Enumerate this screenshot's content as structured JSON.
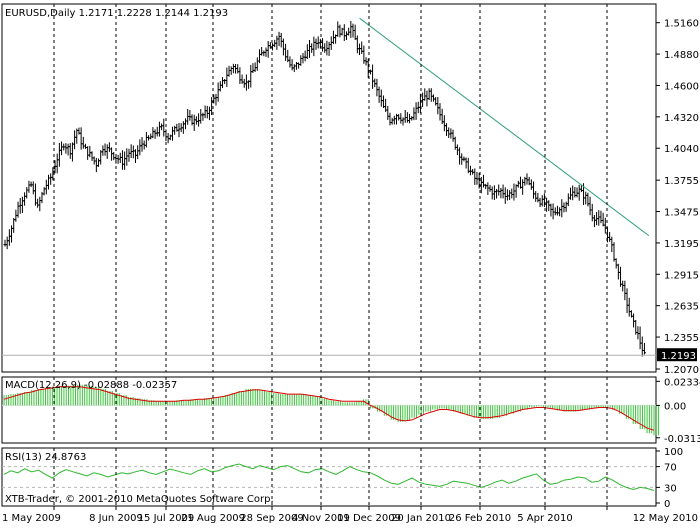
{
  "chart_data": [
    {
      "type": "ohlc",
      "title": "EURUSD,Daily",
      "ohlc_header": "1.2171 1.2228 1.2144 1.2193",
      "current_price": "1.2193",
      "y_ticks": [
        "1.5160",
        "1.4880",
        "1.4600",
        "1.4320",
        "1.4040",
        "1.3755",
        "1.3475",
        "1.3195",
        "1.2915",
        "1.2635",
        "1.2355",
        "1.2070"
      ],
      "ylim": [
        1.207,
        1.53
      ],
      "x_labels": [
        "1 May 2009",
        "8 Jun 2009",
        "15 Jul 2009",
        "21 Aug 2009",
        "28 Sep 2009",
        "4 Nov 2009",
        "11 Dec 2009",
        "20 Jan 2010",
        "26 Feb 2010",
        "5 Apr 2010",
        "12 May 2010"
      ],
      "close_path": [
        [
          0,
          1.318
        ],
        [
          3,
          1.333
        ],
        [
          6,
          1.352
        ],
        [
          9,
          1.363
        ],
        [
          12,
          1.371
        ],
        [
          15,
          1.351
        ],
        [
          18,
          1.368
        ],
        [
          21,
          1.378
        ],
        [
          24,
          1.395
        ],
        [
          27,
          1.408
        ],
        [
          30,
          1.402
        ],
        [
          33,
          1.42
        ],
        [
          36,
          1.405
        ],
        [
          39,
          1.398
        ],
        [
          42,
          1.39
        ],
        [
          45,
          1.405
        ],
        [
          48,
          1.402
        ],
        [
          51,
          1.396
        ],
        [
          54,
          1.392
        ],
        [
          57,
          1.4
        ],
        [
          60,
          1.398
        ],
        [
          63,
          1.408
        ],
        [
          66,
          1.412
        ],
        [
          69,
          1.418
        ],
        [
          72,
          1.422
        ],
        [
          75,
          1.414
        ],
        [
          78,
          1.42
        ],
        [
          81,
          1.425
        ],
        [
          84,
          1.43
        ],
        [
          87,
          1.428
        ],
        [
          90,
          1.432
        ],
        [
          93,
          1.436
        ],
        [
          96,
          1.448
        ],
        [
          99,
          1.458
        ],
        [
          102,
          1.47
        ],
        [
          105,
          1.478
        ],
        [
          108,
          1.468
        ],
        [
          111,
          1.462
        ],
        [
          114,
          1.473
        ],
        [
          117,
          1.485
        ],
        [
          120,
          1.494
        ],
        [
          123,
          1.498
        ],
        [
          126,
          1.504
        ],
        [
          129,
          1.487
        ],
        [
          132,
          1.474
        ],
        [
          135,
          1.48
        ],
        [
          138,
          1.488
        ],
        [
          141,
          1.494
        ],
        [
          144,
          1.5
        ],
        [
          147,
          1.494
        ],
        [
          150,
          1.5
        ],
        [
          153,
          1.51
        ],
        [
          156,
          1.506
        ],
        [
          159,
          1.512
        ],
        [
          162,
          1.495
        ],
        [
          165,
          1.484
        ],
        [
          168,
          1.47
        ],
        [
          171,
          1.455
        ],
        [
          174,
          1.44
        ],
        [
          177,
          1.429
        ],
        [
          180,
          1.434
        ],
        [
          183,
          1.43
        ],
        [
          186,
          1.428
        ],
        [
          189,
          1.438
        ],
        [
          192,
          1.448
        ],
        [
          195,
          1.452
        ],
        [
          198,
          1.442
        ],
        [
          201,
          1.43
        ],
        [
          204,
          1.419
        ],
        [
          207,
          1.407
        ],
        [
          210,
          1.395
        ],
        [
          213,
          1.386
        ],
        [
          216,
          1.377
        ],
        [
          219,
          1.371
        ],
        [
          222,
          1.368
        ],
        [
          225,
          1.364
        ],
        [
          228,
          1.366
        ],
        [
          231,
          1.362
        ],
        [
          234,
          1.366
        ],
        [
          237,
          1.372
        ],
        [
          240,
          1.377
        ],
        [
          243,
          1.363
        ],
        [
          246,
          1.357
        ],
        [
          249,
          1.353
        ],
        [
          252,
          1.346
        ],
        [
          255,
          1.35
        ],
        [
          258,
          1.356
        ],
        [
          261,
          1.364
        ],
        [
          264,
          1.366
        ],
        [
          267,
          1.36
        ],
        [
          270,
          1.344
        ],
        [
          273,
          1.34
        ],
        [
          276,
          1.333
        ],
        [
          279,
          1.315
        ],
        [
          282,
          1.292
        ],
        [
          285,
          1.272
        ],
        [
          288,
          1.252
        ],
        [
          291,
          1.237
        ],
        [
          294,
          1.219
        ]
      ],
      "trendline": {
        "from": [
          163,
          1.52
        ],
        "to": [
          296,
          1.326
        ]
      }
    },
    {
      "type": "macd",
      "label": "MACD(12,26,9) -0.02888 -0.02357",
      "y_ticks": [
        "0.02334",
        "0.00",
        "-0.03137"
      ],
      "ylim": [
        -0.0345,
        0.0256
      ],
      "histogram": [
        0.01,
        0.011,
        0.012,
        0.013,
        0.015,
        0.016,
        0.017,
        0.018,
        0.019,
        0.019,
        0.02,
        0.02,
        0.019,
        0.018,
        0.016,
        0.014,
        0.012,
        0.01,
        0.008,
        0.007,
        0.006,
        0.005,
        0.004,
        0.004,
        0.004,
        0.005,
        0.005,
        0.006,
        0.006,
        0.007,
        0.007,
        0.008,
        0.01,
        0.012,
        0.014,
        0.016,
        0.016,
        0.015,
        0.013,
        0.012,
        0.011,
        0.011,
        0.011,
        0.011,
        0.01,
        0.009,
        0.007,
        0.005,
        0.004,
        0.003,
        0.003,
        0.004,
        0.006,
        -0.003,
        -0.006,
        -0.01,
        -0.014,
        -0.016,
        -0.015,
        -0.012,
        -0.009,
        -0.006,
        -0.004,
        -0.003,
        -0.004,
        -0.006,
        -0.008,
        -0.01,
        -0.012,
        -0.013,
        -0.013,
        -0.012,
        -0.01,
        -0.008,
        -0.006,
        -0.004,
        -0.002,
        -0.001,
        -0.002,
        -0.003,
        -0.005,
        -0.006,
        -0.006,
        -0.005,
        -0.004,
        -0.003,
        -0.002,
        -0.002,
        -0.004,
        -0.008,
        -0.013,
        -0.018,
        -0.023,
        -0.027,
        -0.029
      ],
      "signal": [
        0.006,
        0.008,
        0.01,
        0.012,
        0.013,
        0.015,
        0.016,
        0.017,
        0.018,
        0.018,
        0.018,
        0.018,
        0.017,
        0.016,
        0.015,
        0.013,
        0.011,
        0.009,
        0.007,
        0.006,
        0.005,
        0.004,
        0.004,
        0.004,
        0.004,
        0.004,
        0.005,
        0.005,
        0.006,
        0.006,
        0.007,
        0.008,
        0.009,
        0.011,
        0.013,
        0.014,
        0.015,
        0.015,
        0.014,
        0.013,
        0.012,
        0.011,
        0.011,
        0.011,
        0.01,
        0.009,
        0.008,
        0.006,
        0.005,
        0.004,
        0.004,
        0.004,
        0.004,
        0.0,
        -0.003,
        -0.007,
        -0.011,
        -0.014,
        -0.015,
        -0.014,
        -0.011,
        -0.008,
        -0.006,
        -0.004,
        -0.004,
        -0.005,
        -0.007,
        -0.009,
        -0.011,
        -0.012,
        -0.012,
        -0.011,
        -0.01,
        -0.008,
        -0.006,
        -0.004,
        -0.003,
        -0.002,
        -0.002,
        -0.003,
        -0.004,
        -0.005,
        -0.005,
        -0.005,
        -0.004,
        -0.003,
        -0.002,
        -0.002,
        -0.003,
        -0.006,
        -0.01,
        -0.014,
        -0.018,
        -0.022,
        -0.024
      ]
    },
    {
      "type": "rsi",
      "label": "RSI(13) 24.8763",
      "y_ticks": [
        "100",
        "70",
        "30",
        "0"
      ],
      "ylim": [
        0,
        100
      ],
      "levels": [
        70,
        30
      ],
      "values": [
        55,
        62,
        58,
        66,
        60,
        63,
        55,
        48,
        58,
        64,
        60,
        56,
        52,
        58,
        55,
        50,
        54,
        58,
        56,
        60,
        63,
        58,
        55,
        60,
        65,
        62,
        58,
        55,
        62,
        66,
        60,
        62,
        68,
        72,
        75,
        70,
        66,
        72,
        68,
        64,
        70,
        72,
        66,
        60,
        58,
        64,
        66,
        60,
        55,
        62,
        70,
        64,
        60,
        58,
        52,
        44,
        38,
        36,
        42,
        48,
        40,
        36,
        34,
        32,
        36,
        42,
        40,
        38,
        34,
        30,
        34,
        40,
        44,
        38,
        42,
        48,
        52,
        56,
        44,
        36,
        38,
        44,
        46,
        50,
        48,
        40,
        42,
        50,
        44,
        36,
        30,
        26,
        30,
        28,
        24
      ],
      "watermark": "XTB-Trader, © 2001-2010 MetaQuotes Software Corp."
    }
  ]
}
